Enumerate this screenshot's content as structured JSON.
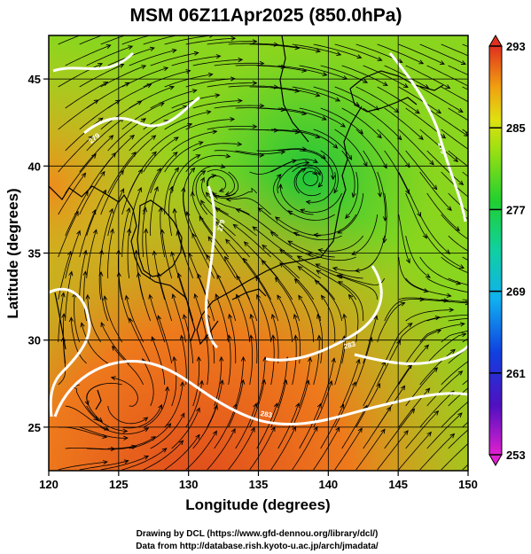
{
  "title": "MSM 06Z11Apr2025 (850.0hPa)",
  "xlabel": "Longitude (degrees)",
  "ylabel": "Latitude  (degrees)",
  "x_ticks": [
    "120",
    "125",
    "130",
    "135",
    "140",
    "145",
    "150"
  ],
  "y_ticks": [
    "25",
    "30",
    "35",
    "40",
    "45"
  ],
  "colorbar": {
    "ticks": [
      "293",
      "285",
      "277",
      "269",
      "261",
      "253"
    ],
    "min": 253,
    "max": 293
  },
  "contour_labels": [
    "279",
    "279",
    "279",
    "283",
    "283"
  ],
  "credits": {
    "line1": "Drawing by DCL (https://www.gfd-dennou.org/library/dcl/)",
    "line2": "Data from http://database.rish.kyoto-u.ac.jp/arch/jmadata/"
  },
  "colors": {
    "cold": "#d020c0",
    "mid": "#20d030",
    "warm": "#e03020",
    "contour": "#ffffff",
    "streamline": "#000000"
  },
  "chart_data": {
    "type": "heatmap",
    "title": "MSM 06Z11Apr2025 (850.0hPa)",
    "xlabel": "Longitude (degrees)",
    "ylabel": "Latitude  (degrees)",
    "xlim": [
      120,
      150
    ],
    "ylim": [
      22.5,
      47.5
    ],
    "zlim": [
      253,
      293
    ],
    "colorbar_ticks": [
      293,
      285,
      277,
      269,
      261,
      253
    ],
    "contours": [
      279,
      283
    ],
    "vector_field": "wind streamlines"
  }
}
